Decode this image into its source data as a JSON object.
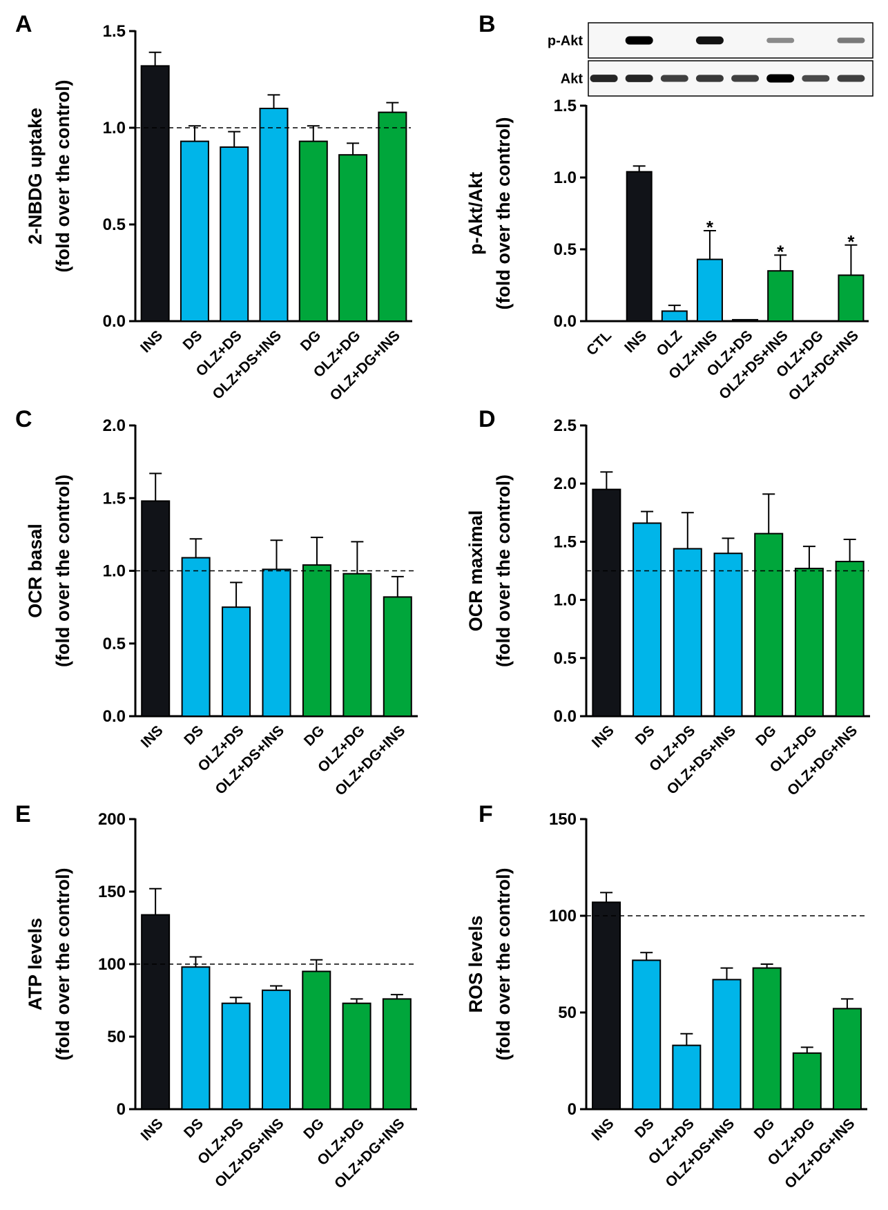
{
  "colors": {
    "ins": "#111318",
    "ds": "#00b5e9",
    "dg": "#00a63b",
    "axis": "#000000",
    "background": "#ffffff"
  },
  "chart_data": [
    {
      "panel": "A",
      "type": "bar",
      "ylabel": "2-NBDG uptake",
      "ylabel_sub": "(fold over the control)",
      "ylim": [
        0,
        1.5
      ],
      "yticks": [
        "0.0",
        "0.5",
        "1.0",
        "1.5"
      ],
      "ytick_values": [
        0,
        0.5,
        1.0,
        1.5
      ],
      "reference_line": 1.0,
      "categories": [
        "INS",
        "DS",
        "OLZ+DS",
        "OLZ+DS+INS",
        "DG",
        "OLZ+DG",
        "OLZ+DG+INS"
      ],
      "values": [
        1.32,
        0.93,
        0.9,
        1.1,
        0.93,
        0.86,
        1.08
      ],
      "errors": [
        0.07,
        0.08,
        0.08,
        0.07,
        0.08,
        0.06,
        0.05
      ],
      "groups": [
        "ins",
        "ds",
        "ds",
        "ds",
        "dg",
        "dg",
        "dg"
      ]
    },
    {
      "panel": "B",
      "type": "bar",
      "ylabel": "p-Akt/Akt",
      "ylabel_sub": "(fold over the control)",
      "ylim": [
        0,
        1.5
      ],
      "yticks": [
        "0.0",
        "0.5",
        "1.0",
        "1.5"
      ],
      "ytick_values": [
        0,
        0.5,
        1.0,
        1.5
      ],
      "categories": [
        "CTL",
        "INS",
        "OLZ",
        "OLZ+INS",
        "OLZ+DS",
        "OLZ+DS+INS",
        "OLZ+DG",
        "OLZ+DG+INS"
      ],
      "values": [
        0.0,
        1.04,
        0.07,
        0.43,
        0.01,
        0.35,
        0.0,
        0.32
      ],
      "errors": [
        0,
        0.04,
        0.04,
        0.2,
        0,
        0.11,
        0,
        0.21
      ],
      "groups": [
        "ins",
        "ins",
        "ds",
        "ds",
        "ds",
        "dg",
        "dg",
        "dg"
      ],
      "significance": [
        "",
        "",
        "",
        "*",
        "",
        "*",
        "",
        "*"
      ],
      "blot": {
        "rows": [
          "p-Akt",
          "Akt"
        ],
        "bands": [
          [
            0.0,
            1.0,
            0.0,
            0.9,
            0.0,
            0.25,
            0.0,
            0.35
          ],
          [
            0.8,
            0.8,
            0.65,
            0.7,
            0.65,
            1.0,
            0.6,
            0.65
          ]
        ]
      }
    },
    {
      "panel": "C",
      "type": "bar",
      "ylabel": "OCR basal",
      "ylabel_sub": "(fold over the control)",
      "ylim": [
        0,
        2.0
      ],
      "yticks": [
        "0.0",
        "0.5",
        "1.0",
        "1.5",
        "2.0"
      ],
      "ytick_values": [
        0,
        0.5,
        1.0,
        1.5,
        2.0
      ],
      "reference_line": 1.0,
      "categories": [
        "INS",
        "DS",
        "OLZ+DS",
        "OLZ+DS+INS",
        "DG",
        "OLZ+DG",
        "OLZ+DG+INS"
      ],
      "values": [
        1.48,
        1.09,
        0.75,
        1.01,
        1.04,
        0.98,
        0.82
      ],
      "errors": [
        0.19,
        0.13,
        0.17,
        0.2,
        0.19,
        0.22,
        0.14
      ],
      "groups": [
        "ins",
        "ds",
        "ds",
        "ds",
        "dg",
        "dg",
        "dg"
      ]
    },
    {
      "panel": "D",
      "type": "bar",
      "ylabel": "OCR maximal",
      "ylabel_sub": "(fold over the control)",
      "ylim": [
        0,
        2.5
      ],
      "yticks": [
        "0.0",
        "0.5",
        "1.0",
        "1.5",
        "2.0",
        "2.5"
      ],
      "ytick_values": [
        0,
        0.5,
        1.0,
        1.5,
        2.0,
        2.5
      ],
      "reference_line": 1.25,
      "categories": [
        "INS",
        "DS",
        "OLZ+DS",
        "OLZ+DS+INS",
        "DG",
        "OLZ+DG",
        "OLZ+DG+INS"
      ],
      "values": [
        1.95,
        1.66,
        1.44,
        1.4,
        1.57,
        1.27,
        1.33
      ],
      "errors": [
        0.15,
        0.1,
        0.31,
        0.13,
        0.34,
        0.19,
        0.19
      ],
      "groups": [
        "ins",
        "ds",
        "ds",
        "ds",
        "dg",
        "dg",
        "dg"
      ]
    },
    {
      "panel": "E",
      "type": "bar",
      "ylabel": "ATP levels",
      "ylabel_sub": "(fold over the control)",
      "ylim": [
        0,
        200
      ],
      "yticks": [
        "0",
        "50",
        "100",
        "150",
        "200"
      ],
      "ytick_values": [
        0,
        50,
        100,
        150,
        200
      ],
      "reference_line": 100,
      "categories": [
        "INS",
        "DS",
        "OLZ+DS",
        "OLZ+DS+INS",
        "DG",
        "OLZ+DG",
        "OLZ+DG+INS"
      ],
      "values": [
        134,
        98,
        73,
        82,
        95,
        73,
        76
      ],
      "errors": [
        18,
        7,
        4,
        3,
        8,
        3,
        3
      ],
      "groups": [
        "ins",
        "ds",
        "ds",
        "ds",
        "dg",
        "dg",
        "dg"
      ]
    },
    {
      "panel": "F",
      "type": "bar",
      "ylabel": "ROS levels",
      "ylabel_sub": "(fold over the control)",
      "ylim": [
        0,
        150
      ],
      "yticks": [
        "0",
        "50",
        "100",
        "150"
      ],
      "ytick_values": [
        0,
        50,
        100,
        150
      ],
      "reference_line": 100,
      "categories": [
        "INS",
        "DS",
        "OLZ+DS",
        "OLZ+DS+INS",
        "DG",
        "OLZ+DG",
        "OLZ+DG+INS"
      ],
      "values": [
        107,
        77,
        33,
        67,
        73,
        29,
        52
      ],
      "errors": [
        5,
        4,
        6,
        6,
        2,
        3,
        5
      ],
      "groups": [
        "ins",
        "ds",
        "ds",
        "ds",
        "dg",
        "dg",
        "dg"
      ]
    }
  ]
}
